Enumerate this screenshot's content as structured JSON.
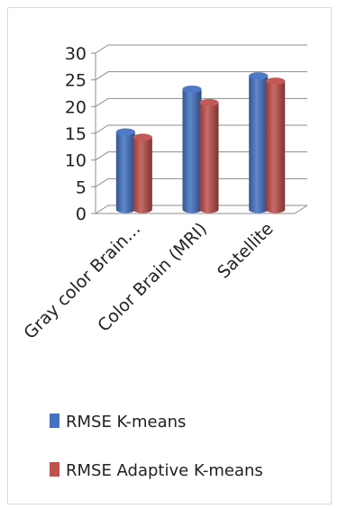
{
  "chart_data": {
    "type": "bar",
    "three_d": true,
    "title": "",
    "xlabel": "",
    "ylabel": "",
    "categories": [
      "Gray color Brain…",
      "Color Brain (MRI)",
      "Satellite"
    ],
    "series": [
      {
        "name": "RMSE K-means",
        "color": "#4472c4",
        "values": [
          14.5,
          22.5,
          25
        ]
      },
      {
        "name": "RMSE Adaptive K-means",
        "color": "#c0504d",
        "values": [
          13.5,
          20,
          24
        ]
      }
    ],
    "ylim": [
      0,
      30
    ],
    "yticks": [
      0,
      5,
      10,
      15,
      20,
      25,
      30
    ],
    "grid": true,
    "legend_position": "bottom"
  }
}
